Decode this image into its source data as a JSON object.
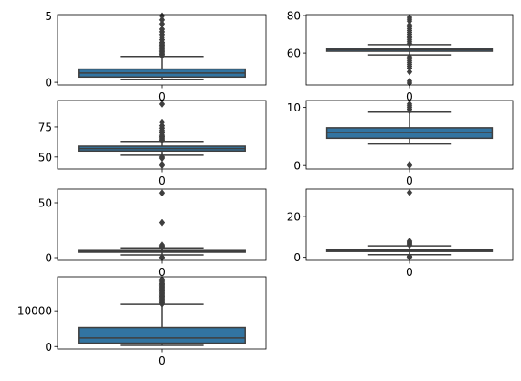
{
  "colors": {
    "box_fill": "#3274a1",
    "line": "#3f3f3f",
    "axes": "#000000",
    "background": "#ffffff"
  },
  "chart_data": [
    {
      "type": "boxplot",
      "title": "",
      "xlabel": "",
      "ylabel": "",
      "categories": [
        "0"
      ],
      "ylim": [
        -0.2,
        5.1
      ],
      "yticks": [
        0,
        5
      ],
      "ytick_labels": [
        "0",
        "5"
      ],
      "stats": {
        "whisker_low": 0.2,
        "q1": 0.4,
        "median": 0.7,
        "q3": 1.0,
        "whisker_high": 1.95
      },
      "outliers": [
        2.0,
        2.1,
        2.2,
        2.3,
        2.4,
        2.5,
        2.6,
        2.7,
        2.8,
        2.9,
        3.0,
        3.2,
        3.4,
        3.6,
        3.8,
        4.0,
        4.4,
        4.7,
        5.0
      ]
    },
    {
      "type": "boxplot",
      "title": "",
      "xlabel": "",
      "ylabel": "",
      "categories": [
        "0"
      ],
      "ylim": [
        43,
        80.5
      ],
      "yticks": [
        60,
        80
      ],
      "ytick_labels": [
        "60",
        "80"
      ],
      "stats": {
        "whisker_low": 59.0,
        "q1": 61.0,
        "median": 61.8,
        "q3": 62.5,
        "whisker_high": 64.5
      },
      "outliers": [
        44,
        45,
        50,
        52,
        53,
        54,
        55,
        56,
        57,
        58,
        65,
        66,
        67,
        68,
        69,
        70,
        71,
        72,
        73,
        74,
        75,
        77,
        78,
        79
      ]
    },
    {
      "type": "boxplot",
      "title": "",
      "xlabel": "",
      "ylabel": "",
      "categories": [
        "0"
      ],
      "ylim": [
        40,
        97
      ],
      "yticks": [
        50,
        75
      ],
      "ytick_labels": [
        "50",
        "75"
      ],
      "stats": {
        "whisker_low": 51.5,
        "q1": 55.0,
        "median": 57.0,
        "q3": 59.0,
        "whisker_high": 63.0
      },
      "outliers": [
        43,
        44,
        49,
        50,
        64,
        65,
        66,
        67,
        68,
        70,
        72,
        74,
        76,
        79,
        94
      ]
    },
    {
      "type": "boxplot",
      "title": "",
      "xlabel": "",
      "ylabel": "",
      "categories": [
        "0"
      ],
      "ylim": [
        -0.6,
        11.2
      ],
      "yticks": [
        0,
        10
      ],
      "ytick_labels": [
        "0",
        "10"
      ],
      "stats": {
        "whisker_low": 3.7,
        "q1": 4.7,
        "median": 5.7,
        "q3": 6.5,
        "whisker_high": 9.2
      },
      "outliers": [
        0,
        0.2,
        9.4,
        9.7,
        10.0,
        10.3,
        10.6
      ]
    },
    {
      "type": "boxplot",
      "title": "",
      "xlabel": "",
      "ylabel": "",
      "categories": [
        "0"
      ],
      "ylim": [
        -2.5,
        62.5
      ],
      "yticks": [
        0,
        50
      ],
      "ytick_labels": [
        "0",
        "50"
      ],
      "stats": {
        "whisker_low": 2.5,
        "q1": 5.0,
        "median": 5.7,
        "q3": 6.5,
        "whisker_high": 9.0
      },
      "outliers": [
        0,
        0.3,
        9.5,
        10.5,
        11.5,
        32,
        59
      ]
    },
    {
      "type": "boxplot",
      "title": "",
      "xlabel": "",
      "ylabel": "",
      "categories": [
        "0"
      ],
      "ylim": [
        -1.5,
        33.5
      ],
      "yticks": [
        0,
        20
      ],
      "ytick_labels": [
        "0",
        "20"
      ],
      "stats": {
        "whisker_low": 1.3,
        "q1": 2.9,
        "median": 3.5,
        "q3": 4.0,
        "whisker_high": 5.6
      },
      "outliers": [
        0,
        0.2,
        0.5,
        6.0,
        6.5,
        7.0,
        7.5,
        8.0,
        31.8
      ]
    },
    {
      "type": "boxplot",
      "title": "",
      "xlabel": "",
      "ylabel": "",
      "categories": [
        "0"
      ],
      "ylim": [
        -700,
        19500
      ],
      "yticks": [
        0,
        10000
      ],
      "ytick_labels": [
        "0",
        "10000"
      ],
      "stats": {
        "whisker_low": 326,
        "q1": 950,
        "median": 2400,
        "q3": 5300,
        "whisker_high": 11800
      },
      "outliers": [
        11900,
        12200,
        12500,
        12800,
        13100,
        13400,
        13700,
        14000,
        14300,
        14600,
        14900,
        15200,
        15500,
        15800,
        16100,
        16400,
        16700,
        17000,
        17300,
        17600,
        18000,
        18400,
        18800
      ]
    }
  ]
}
